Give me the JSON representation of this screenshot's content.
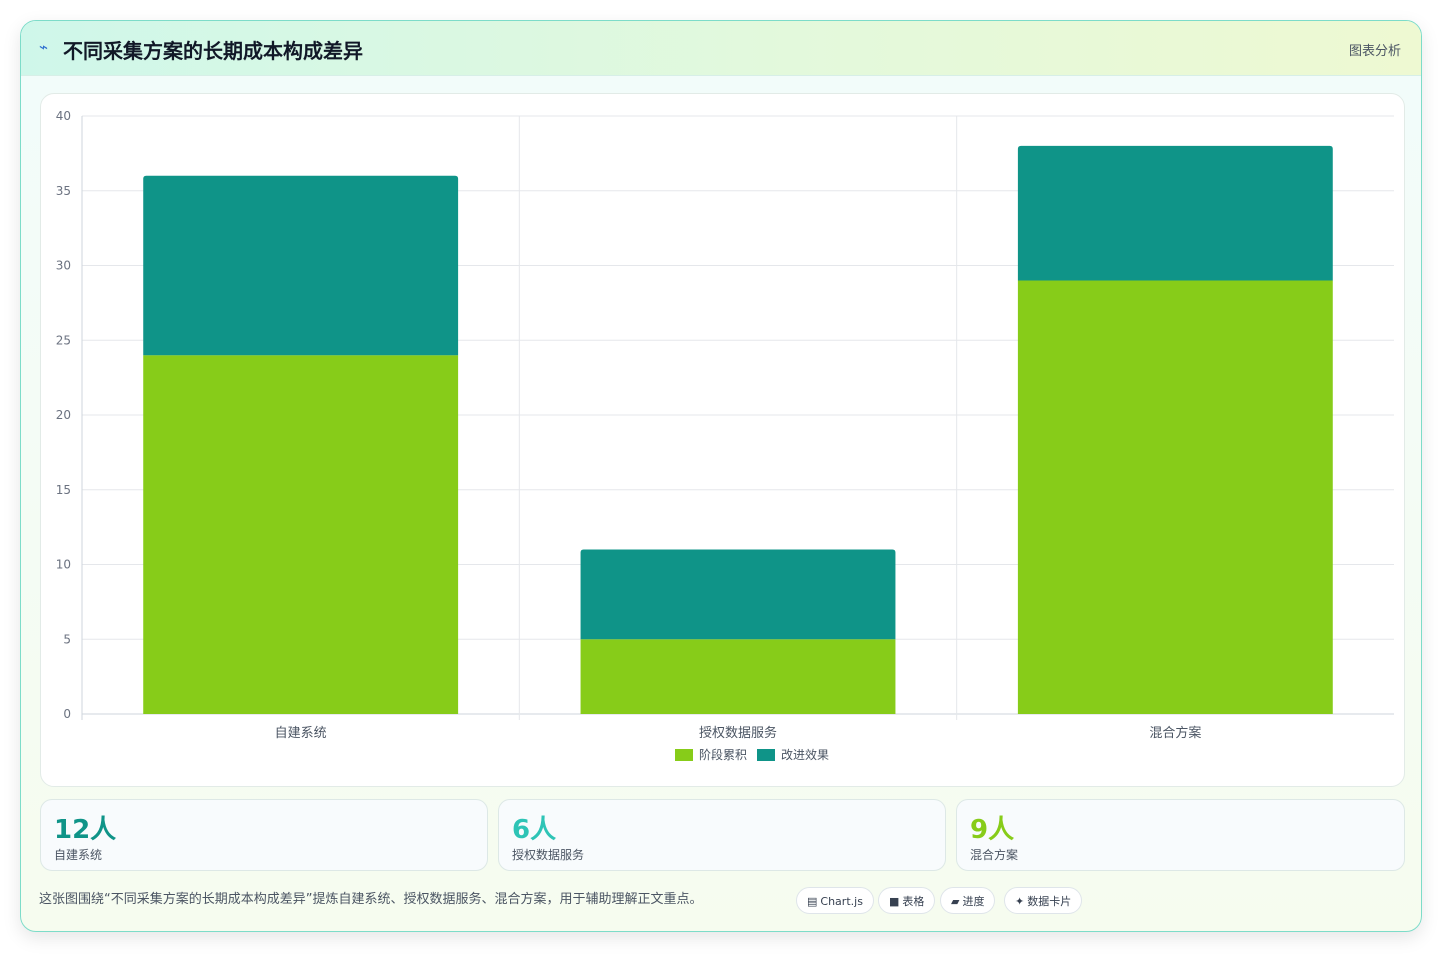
{
  "header": {
    "icon": "sparkline-icon",
    "title": "不同采集方案的长期成本构成差异",
    "tag": "图表分析"
  },
  "chart_data": {
    "type": "bar",
    "stacked": true,
    "title": "",
    "xlabel": "",
    "ylabel": "",
    "categories": [
      "自建系统",
      "授权数据服务",
      "混合方案"
    ],
    "series": [
      {
        "name": "阶段累积",
        "values": [
          24,
          5,
          29
        ],
        "color": "#87cc19"
      },
      {
        "name": "改进效果",
        "values": [
          12,
          6,
          9
        ],
        "color": "#0f9488"
      }
    ],
    "ylim": [
      0,
      40
    ],
    "yticks": [
      0,
      5,
      10,
      15,
      20,
      25,
      30,
      35,
      40
    ],
    "grid": true,
    "legend_position": "bottom"
  },
  "stats": [
    {
      "value": "12人",
      "label": "自建系统",
      "color": "#0f9488"
    },
    {
      "value": "6人",
      "label": "授权数据服务",
      "color": "#2ec4b6"
    },
    {
      "value": "9人",
      "label": "混合方案",
      "color": "#87cc19"
    }
  ],
  "caption": "这张图围绕“不同采集方案的长期成本构成差异”提炼自建系统、授权数据服务、混合方案，用于辅助理解正文重点。",
  "chips": [
    {
      "icon": "▤",
      "icon_name": "chart-icon",
      "label": "Chart.js"
    },
    {
      "icon": "■",
      "icon_name": "table-icon",
      "label": "表格"
    },
    {
      "icon": "▰",
      "icon_name": "progress-icon",
      "label": "进度"
    },
    {
      "icon": "✦",
      "icon_name": "sparkle-icon",
      "label": "数据卡片"
    }
  ]
}
